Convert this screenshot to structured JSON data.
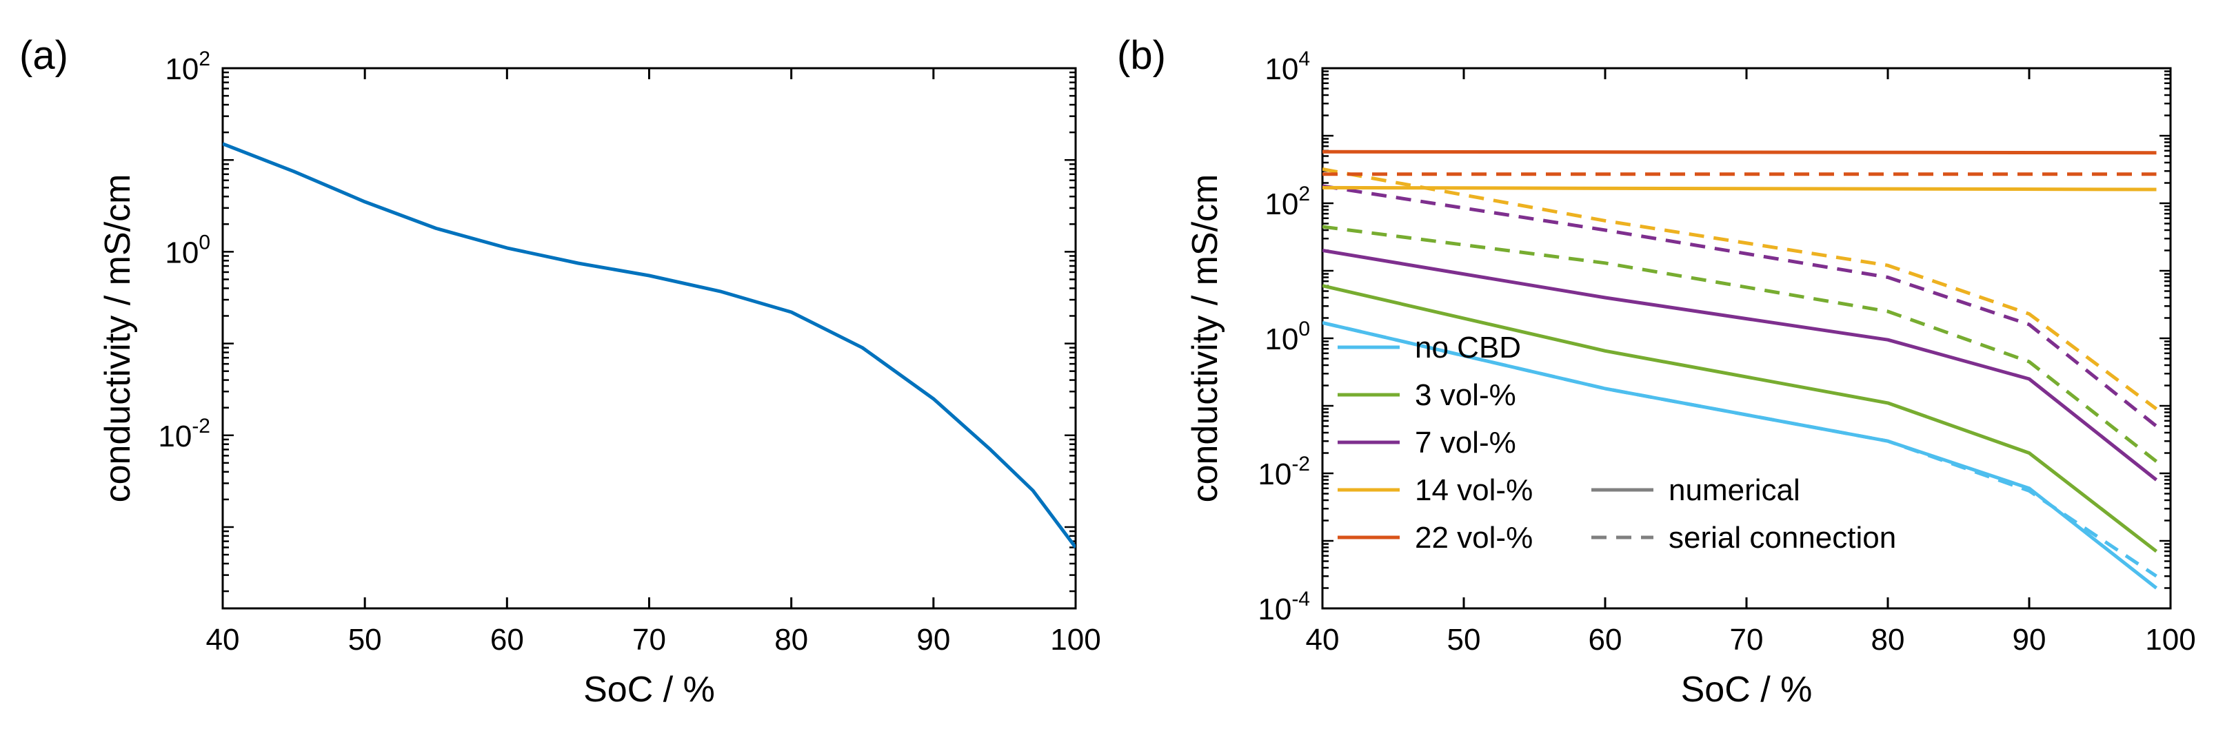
{
  "chart_data": [
    {
      "panel_label": "(a)",
      "type": "line",
      "xlabel": "SoC / %",
      "ylabel": "conductivity / mS/cm",
      "xlim": [
        40,
        100
      ],
      "ylim": [
        0.00013,
        100
      ],
      "yscale": "log",
      "x_ticks": [
        "40",
        "50",
        "60",
        "70",
        "80",
        "90",
        "100"
      ],
      "y_ticks": [
        {
          "base": "10",
          "exp": "-2",
          "value": 0.01
        },
        {
          "base": "10",
          "exp": "0",
          "value": 1
        },
        {
          "base": "10",
          "exp": "2",
          "value": 100
        }
      ],
      "series": [
        {
          "name": "conductivity",
          "color": "#0072BD",
          "style": "solid",
          "x": [
            40,
            45,
            50,
            55,
            60,
            65,
            70,
            75,
            80,
            85,
            90,
            94,
            97,
            100
          ],
          "y": [
            15,
            7.5,
            3.5,
            1.8,
            1.1,
            0.75,
            0.55,
            0.37,
            0.22,
            0.09,
            0.025,
            0.007,
            0.0025,
            0.0006
          ]
        }
      ]
    },
    {
      "panel_label": "(b)",
      "type": "line",
      "xlabel": "SoC / %",
      "ylabel": "conductivity / mS/cm",
      "xlim": [
        40,
        100
      ],
      "ylim": [
        0.0001,
        10000
      ],
      "yscale": "log",
      "x_ticks": [
        "40",
        "50",
        "60",
        "70",
        "80",
        "90",
        "100"
      ],
      "y_ticks": [
        {
          "base": "10",
          "exp": "-4",
          "value": 0.0001
        },
        {
          "base": "10",
          "exp": "-2",
          "value": 0.01
        },
        {
          "base": "10",
          "exp": "0",
          "value": 1
        },
        {
          "base": "10",
          "exp": "2",
          "value": 100
        },
        {
          "base": "10",
          "exp": "4",
          "value": 10000
        }
      ],
      "legend_position": "bottom-left",
      "legend": [
        {
          "label": "no CBD",
          "color": "#4DBEEE"
        },
        {
          "label": "3 vol-%",
          "color": "#77AC30"
        },
        {
          "label": "7 vol-%",
          "color": "#7E2F8E"
        },
        {
          "label": "14 vol-%",
          "color": "#EDB120"
        },
        {
          "label": "22 vol-%",
          "color": "#D95319"
        }
      ],
      "style_legend": [
        {
          "label": "numerical",
          "style": "solid",
          "color": "#808080"
        },
        {
          "label": "serial connection",
          "style": "dashed",
          "color": "#808080"
        }
      ],
      "series": [
        {
          "name": "no CBD numerical",
          "color": "#4DBEEE",
          "style": "solid",
          "x": [
            40,
            60,
            80,
            90,
            99
          ],
          "y": [
            1.7,
            0.18,
            0.03,
            0.006,
            0.0002
          ]
        },
        {
          "name": "no CBD serial connection",
          "color": "#4DBEEE",
          "style": "dashed",
          "x": [
            40,
            60,
            80,
            90,
            99
          ],
          "y": [
            1.7,
            0.18,
            0.03,
            0.0055,
            0.0003
          ]
        },
        {
          "name": "3 vol-% numerical",
          "color": "#77AC30",
          "style": "solid",
          "x": [
            40,
            60,
            80,
            90,
            99
          ],
          "y": [
            6,
            0.65,
            0.11,
            0.02,
            0.0007
          ]
        },
        {
          "name": "3 vol-% serial connection",
          "color": "#77AC30",
          "style": "dashed",
          "x": [
            40,
            60,
            80,
            90,
            99
          ],
          "y": [
            45,
            13,
            2.5,
            0.45,
            0.015
          ]
        },
        {
          "name": "7 vol-% numerical",
          "color": "#7E2F8E",
          "style": "solid",
          "x": [
            40,
            60,
            80,
            90,
            99
          ],
          "y": [
            20,
            4,
            0.95,
            0.25,
            0.008
          ]
        },
        {
          "name": "7 vol-% serial connection",
          "color": "#7E2F8E",
          "style": "dashed",
          "x": [
            40,
            60,
            80,
            90,
            99
          ],
          "y": [
            180,
            40,
            8,
            1.6,
            0.05
          ]
        },
        {
          "name": "14 vol-% numerical",
          "color": "#EDB120",
          "style": "solid",
          "x": [
            40,
            99
          ],
          "y": [
            170,
            160
          ]
        },
        {
          "name": "14 vol-% serial connection",
          "color": "#EDB120",
          "style": "dashed",
          "x": [
            40,
            60,
            80,
            90,
            99
          ],
          "y": [
            320,
            55,
            12,
            2.3,
            0.09
          ]
        },
        {
          "name": "22 vol-% numerical",
          "color": "#D95319",
          "style": "solid",
          "x": [
            40,
            99
          ],
          "y": [
            580,
            560
          ]
        },
        {
          "name": "22 vol-% serial connection",
          "color": "#D95319",
          "style": "dashed",
          "x": [
            40,
            99
          ],
          "y": [
            270,
            270
          ]
        }
      ]
    }
  ]
}
